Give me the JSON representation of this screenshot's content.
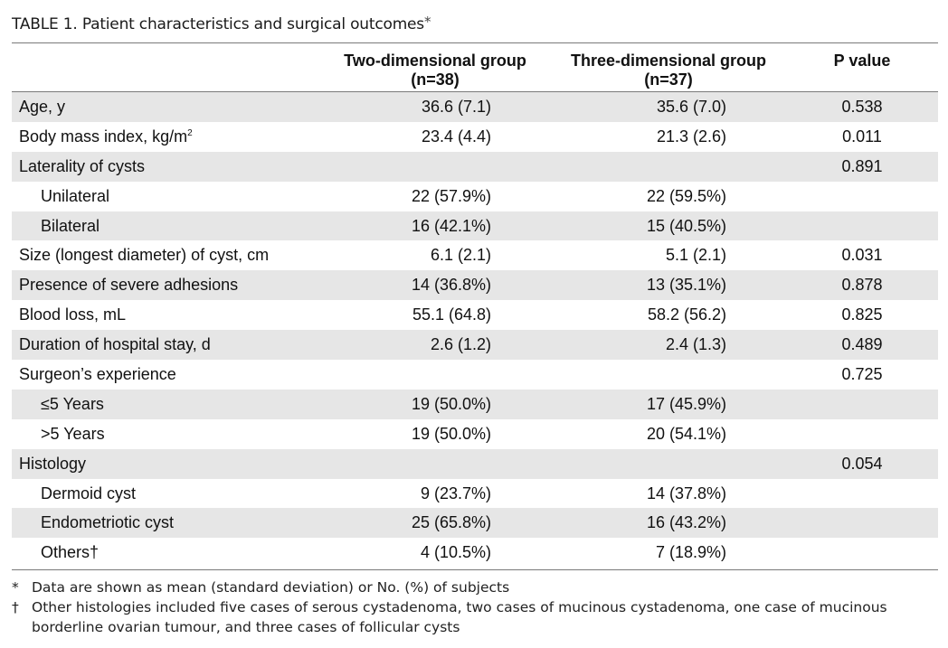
{
  "caption": {
    "label": "TABLE 1.",
    "text": "Patient characteristics and surgical outcomes",
    "marker": "*"
  },
  "header": {
    "col_2d_line1": "Two-dimensional group",
    "col_2d_line2": "(n=38)",
    "col_3d_line1": "Three-dimensional group",
    "col_3d_line2": "(n=37)",
    "col_p": "P value"
  },
  "rows": [
    {
      "label": "Age, y",
      "v2d": "36.6 (7.1)",
      "v3d": "35.6 (7.0)",
      "p": "0.538"
    },
    {
      "label": "Body mass index, kg/m",
      "label_sup": "2",
      "v2d": "23.4 (4.4)",
      "v3d": "21.3 (2.6)",
      "p": "0.011"
    },
    {
      "label": "Laterality of cysts",
      "v2d": "",
      "v3d": "",
      "p": "0.891"
    },
    {
      "label": "Unilateral",
      "v2d": "22 (57.9%)",
      "v3d": "22 (59.5%)",
      "p": ""
    },
    {
      "label": "Bilateral",
      "v2d": "16 (42.1%)",
      "v3d": "15 (40.5%)",
      "p": ""
    },
    {
      "label": "Size (longest diameter) of cyst, cm",
      "v2d": "6.1 (2.1)",
      "v3d": "5.1 (2.1)",
      "p": "0.031"
    },
    {
      "label": "Presence of severe adhesions",
      "v2d": "14 (36.8%)",
      "v3d": "13 (35.1%)",
      "p": "0.878"
    },
    {
      "label": "Blood loss, mL",
      "v2d": "55.1 (64.8)",
      "v3d": "58.2 (56.2)",
      "p": "0.825"
    },
    {
      "label": "Duration of hospital stay, d",
      "v2d": "2.6 (1.2)",
      "v3d": "2.4 (1.3)",
      "p": "0.489"
    },
    {
      "label": "Surgeon’s experience",
      "v2d": "",
      "v3d": "",
      "p": "0.725"
    },
    {
      "label": "≤5 Years",
      "v2d": "19 (50.0%)",
      "v3d": "17 (45.9%)",
      "p": ""
    },
    {
      "label": ">5 Years",
      "v2d": "19 (50.0%)",
      "v3d": "20 (54.1%)",
      "p": ""
    },
    {
      "label": "Histology",
      "v2d": "",
      "v3d": "",
      "p": "0.054"
    },
    {
      "label": "Dermoid cyst",
      "v2d": "9 (23.7%)",
      "v3d": "14 (37.8%)",
      "p": ""
    },
    {
      "label": "Endometriotic cyst",
      "v2d": "25 (65.8%)",
      "v3d": "16 (43.2%)",
      "p": ""
    },
    {
      "label": "Others†",
      "v2d": "4 (10.5%)",
      "v3d": "7 (18.9%)",
      "p": ""
    }
  ],
  "footnotes": [
    {
      "symbol": "*",
      "text": "Data are shown as mean (standard deviation) or No. (%) of subjects"
    },
    {
      "symbol": "†",
      "text": "Other histologies included five cases of serous cystadenoma, two cases of mucinous cystadenoma, one case of mucinous borderline ovarian tumour, and three cases of follicular cysts"
    }
  ],
  "colors": {
    "shade": "#e6e6e6",
    "rule": "#7a7a7a",
    "text": "#111111"
  }
}
